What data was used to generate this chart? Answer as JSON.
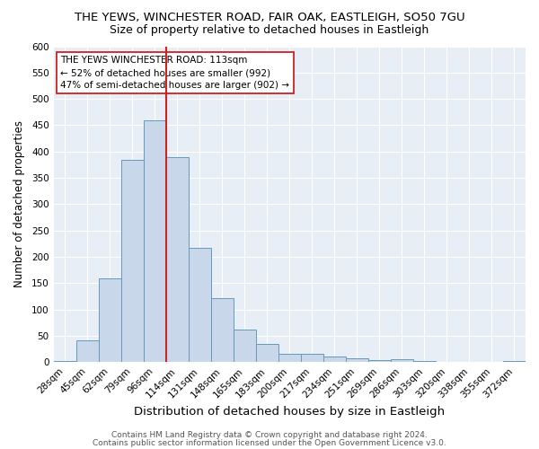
{
  "title1": "THE YEWS, WINCHESTER ROAD, FAIR OAK, EASTLEIGH, SO50 7GU",
  "title2": "Size of property relative to detached houses in Eastleigh",
  "xlabel": "Distribution of detached houses by size in Eastleigh",
  "ylabel": "Number of detached properties",
  "footer1": "Contains HM Land Registry data © Crown copyright and database right 2024.",
  "footer2": "Contains public sector information licensed under the Open Government Licence v3.0.",
  "bin_labels": [
    "28sqm",
    "45sqm",
    "62sqm",
    "79sqm",
    "96sqm",
    "114sqm",
    "131sqm",
    "148sqm",
    "165sqm",
    "183sqm",
    "200sqm",
    "217sqm",
    "234sqm",
    "251sqm",
    "269sqm",
    "286sqm",
    "303sqm",
    "320sqm",
    "338sqm",
    "355sqm",
    "372sqm"
  ],
  "bar_heights": [
    3,
    42,
    160,
    385,
    460,
    390,
    218,
    122,
    62,
    35,
    16,
    16,
    10,
    7,
    4,
    5,
    2,
    1,
    1,
    1,
    2
  ],
  "bar_color": "#c8d8ea",
  "bar_edge_color": "#6699bb",
  "vline_x": 4.5,
  "vline_color": "#cc2222",
  "annotation_text": "THE YEWS WINCHESTER ROAD: 113sqm\n← 52% of detached houses are smaller (992)\n47% of semi-detached houses are larger (902) →",
  "annotation_box_color": "white",
  "annotation_box_edge": "#cc2222",
  "ylim": [
    0,
    600
  ],
  "yticks": [
    0,
    50,
    100,
    150,
    200,
    250,
    300,
    350,
    400,
    450,
    500,
    550,
    600
  ],
  "bg_color": "#e8eef5",
  "grid_color": "white",
  "title1_fontsize": 9.5,
  "title2_fontsize": 9,
  "xlabel_fontsize": 9.5,
  "ylabel_fontsize": 8.5,
  "tick_fontsize": 7.5,
  "footer_fontsize": 6.5
}
